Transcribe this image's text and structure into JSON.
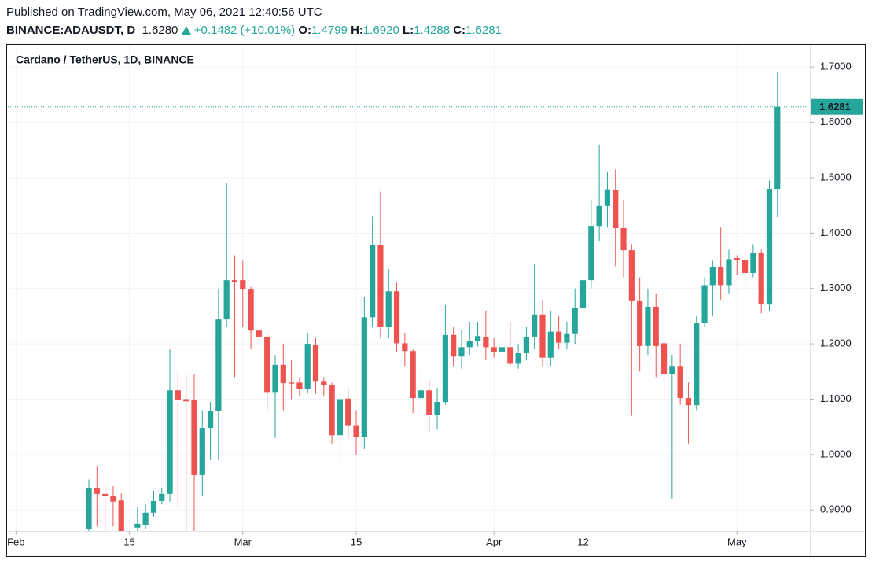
{
  "header": {
    "published": "Published on TradingView.com, May 06, 2021 12:40:56 UTC",
    "symbol": "BINANCE:ADAUSDT, D",
    "price": "1.6280",
    "change": "+0.1482 (+10.01%)",
    "ohlc": [
      {
        "key": "O:",
        "value": "1.4799"
      },
      {
        "key": "H:",
        "value": "1.6920"
      },
      {
        "key": "L:",
        "value": "1.4288"
      },
      {
        "key": "C:",
        "value": "1.6281"
      }
    ]
  },
  "chart_data": {
    "type": "candlestick",
    "title": "Cardano / TetherUS, 1D, BINANCE",
    "up_color": "#26a69a",
    "down_color": "#ef5350",
    "grid": true,
    "x": [
      "2021-02-10",
      "2021-02-11",
      "2021-02-12",
      "2021-02-13",
      "2021-02-14",
      "2021-02-15",
      "2021-02-16",
      "2021-02-17",
      "2021-02-18",
      "2021-02-19",
      "2021-02-20",
      "2021-02-21",
      "2021-02-22",
      "2021-02-23",
      "2021-02-24",
      "2021-02-25",
      "2021-02-26",
      "2021-02-27",
      "2021-02-28",
      "2021-03-01",
      "2021-03-02",
      "2021-03-03",
      "2021-03-04",
      "2021-03-05",
      "2021-03-06",
      "2021-03-07",
      "2021-03-08",
      "2021-03-09",
      "2021-03-10",
      "2021-03-11",
      "2021-03-12",
      "2021-03-13",
      "2021-03-14",
      "2021-03-15",
      "2021-03-16",
      "2021-03-17",
      "2021-03-18",
      "2021-03-19",
      "2021-03-20",
      "2021-03-21",
      "2021-03-22",
      "2021-03-23",
      "2021-03-24",
      "2021-03-25",
      "2021-03-26",
      "2021-03-27",
      "2021-03-28",
      "2021-03-29",
      "2021-03-30",
      "2021-03-31",
      "2021-04-01",
      "2021-04-02",
      "2021-04-03",
      "2021-04-04",
      "2021-04-05",
      "2021-04-06",
      "2021-04-07",
      "2021-04-08",
      "2021-04-09",
      "2021-04-10",
      "2021-04-11",
      "2021-04-12",
      "2021-04-13",
      "2021-04-14",
      "2021-04-15",
      "2021-04-16",
      "2021-04-17",
      "2021-04-18",
      "2021-04-19",
      "2021-04-20",
      "2021-04-21",
      "2021-04-22",
      "2021-04-23",
      "2021-04-24",
      "2021-04-25",
      "2021-04-26",
      "2021-04-27",
      "2021-04-28",
      "2021-04-29",
      "2021-04-30",
      "2021-05-01",
      "2021-05-02",
      "2021-05-03",
      "2021-05-04",
      "2021-05-05",
      "2021-05-06"
    ],
    "open": [
      0.865,
      0.94,
      0.929,
      0.926,
      0.917,
      0.84,
      0.868,
      0.872,
      0.895,
      0.916,
      0.929,
      1.116,
      1.1,
      1.098,
      0.963,
      1.048,
      1.078,
      1.244,
      1.315,
      1.315,
      1.298,
      1.224,
      1.213,
      1.113,
      1.162,
      1.13,
      1.13,
      1.118,
      1.198,
      1.133,
      1.125,
      1.035,
      1.101,
      1.053,
      1.032,
      1.248,
      1.378,
      1.23,
      1.295,
      1.201,
      1.187,
      1.102,
      1.116,
      1.071,
      1.095,
      1.216,
      1.177,
      1.194,
      1.205,
      1.213,
      1.194,
      1.186,
      1.194,
      1.164,
      1.183,
      1.213,
      1.253,
      1.175,
      1.222,
      1.202,
      1.219,
      1.265,
      1.315,
      1.413,
      1.449,
      1.478,
      1.409,
      1.369,
      1.277,
      1.196,
      1.267,
      1.201,
      1.145,
      1.16,
      1.102,
      1.089,
      1.238,
      1.306,
      1.339,
      1.306,
      1.355,
      1.352,
      1.328,
      1.364,
      1.271,
      1.4799
    ],
    "high": [
      0.955,
      0.98,
      0.944,
      0.943,
      0.93,
      0.861,
      0.905,
      0.91,
      0.935,
      0.94,
      1.19,
      1.15,
      1.145,
      1.145,
      1.08,
      1.095,
      1.3,
      1.49,
      1.36,
      1.35,
      1.303,
      1.23,
      1.22,
      1.18,
      1.2,
      1.17,
      1.14,
      1.22,
      1.21,
      1.14,
      1.13,
      1.11,
      1.12,
      1.08,
      1.285,
      1.43,
      1.475,
      1.335,
      1.31,
      1.22,
      1.19,
      1.16,
      1.135,
      1.12,
      1.27,
      1.23,
      1.225,
      1.24,
      1.24,
      1.26,
      1.21,
      1.205,
      1.24,
      1.2,
      1.23,
      1.345,
      1.28,
      1.26,
      1.25,
      1.24,
      1.3,
      1.33,
      1.46,
      1.56,
      1.51,
      1.515,
      1.46,
      1.38,
      1.32,
      1.3,
      1.29,
      1.21,
      1.18,
      1.2,
      1.13,
      1.25,
      1.32,
      1.35,
      1.41,
      1.37,
      1.36,
      1.37,
      1.38,
      1.37,
      1.495,
      1.692
    ],
    "low": [
      0.84,
      0.87,
      0.86,
      0.87,
      0.84,
      0.82,
      0.85,
      0.865,
      0.888,
      0.91,
      0.915,
      0.905,
      0.86,
      0.86,
      0.925,
      0.99,
      0.99,
      1.23,
      1.14,
      1.23,
      1.19,
      1.205,
      1.08,
      1.03,
      1.08,
      1.1,
      1.105,
      1.11,
      1.11,
      1.105,
      1.02,
      0.985,
      1.03,
      1.0,
      1.01,
      1.23,
      1.21,
      1.21,
      1.185,
      1.16,
      1.075,
      1.07,
      1.04,
      1.045,
      1.09,
      1.16,
      1.155,
      1.18,
      1.195,
      1.17,
      1.175,
      1.165,
      1.16,
      1.155,
      1.17,
      1.19,
      1.16,
      1.16,
      1.19,
      1.19,
      1.2,
      1.26,
      1.3,
      1.385,
      1.41,
      1.34,
      1.32,
      1.07,
      1.15,
      1.18,
      1.14,
      1.1,
      0.92,
      1.09,
      1.02,
      1.08,
      1.23,
      1.25,
      1.28,
      1.29,
      1.325,
      1.3,
      1.32,
      1.255,
      1.26,
      1.4288
    ],
    "close": [
      0.94,
      0.929,
      0.925,
      0.915,
      0.86,
      0.858,
      0.875,
      0.895,
      0.916,
      0.929,
      1.116,
      1.099,
      1.096,
      0.963,
      1.048,
      1.078,
      1.244,
      1.315,
      1.312,
      1.298,
      1.224,
      1.213,
      1.113,
      1.162,
      1.129,
      1.128,
      1.118,
      1.2,
      1.133,
      1.125,
      1.035,
      1.1,
      1.053,
      1.032,
      1.248,
      1.379,
      1.23,
      1.295,
      1.201,
      1.187,
      1.102,
      1.116,
      1.071,
      1.095,
      1.216,
      1.177,
      1.194,
      1.205,
      1.214,
      1.194,
      1.186,
      1.194,
      1.164,
      1.183,
      1.213,
      1.253,
      1.175,
      1.222,
      1.202,
      1.219,
      1.265,
      1.315,
      1.413,
      1.449,
      1.479,
      1.409,
      1.369,
      1.277,
      1.196,
      1.267,
      1.196,
      1.145,
      1.16,
      1.102,
      1.089,
      1.238,
      1.306,
      1.339,
      1.306,
      1.353,
      1.352,
      1.328,
      1.364,
      1.271,
      1.48,
      1.6281
    ],
    "last_price": 1.6281,
    "xlim": [
      "2021-01-31",
      "2021-05-10"
    ],
    "xticks": [
      {
        "value": "2021-02-01",
        "label": "Feb"
      },
      {
        "value": "2021-02-15",
        "label": "15"
      },
      {
        "value": "2021-03-01",
        "label": "Mar"
      },
      {
        "value": "2021-03-15",
        "label": "15"
      },
      {
        "value": "2021-04-01",
        "label": "Apr"
      },
      {
        "value": "2021-04-12",
        "label": "12"
      },
      {
        "value": "2021-05-01",
        "label": "May"
      }
    ],
    "ylim": [
      0.862,
      1.74
    ],
    "yticks": [
      {
        "value": 0.9,
        "label": "0.9000"
      },
      {
        "value": 1.0,
        "label": "1.0000"
      },
      {
        "value": 1.1,
        "label": "1.1000"
      },
      {
        "value": 1.2,
        "label": "1.2000"
      },
      {
        "value": 1.3,
        "label": "1.3000"
      },
      {
        "value": 1.4,
        "label": "1.4000"
      },
      {
        "value": 1.5,
        "label": "1.5000"
      },
      {
        "value": 1.6,
        "label": "1.6000"
      },
      {
        "value": 1.7,
        "label": "1.7000"
      }
    ]
  }
}
